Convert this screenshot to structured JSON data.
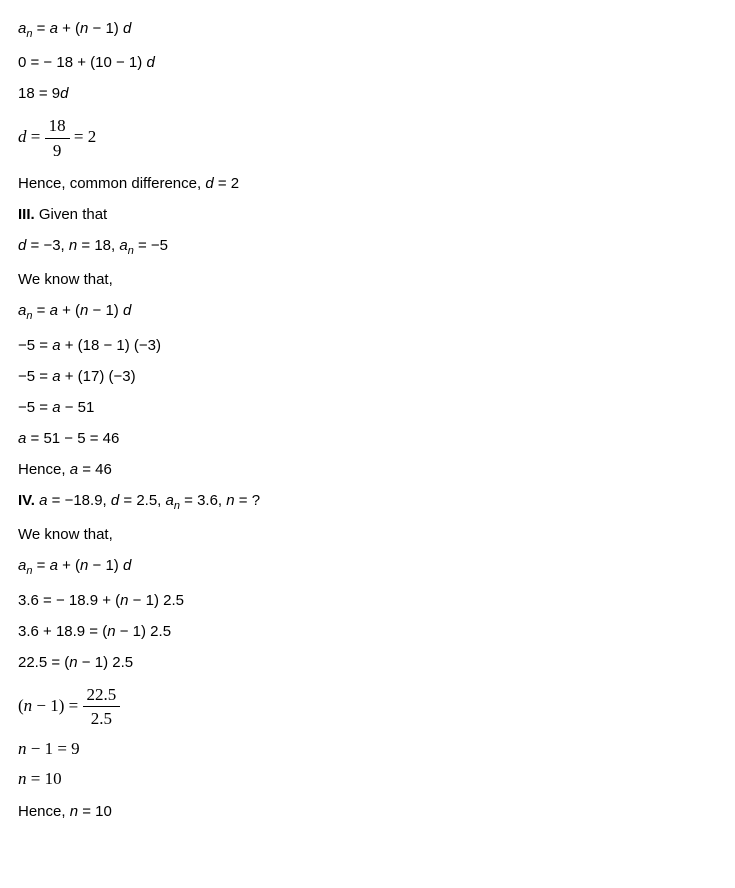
{
  "lines": {
    "l1": "aₙ = a + (n − 1) d",
    "l2": "0 = − 18 + (10 − 1) d",
    "l3": "18 = 9d",
    "l4_lhs": "d",
    "l4_num": "18",
    "l4_den": "9",
    "l4_rhs": "2",
    "l5_pre": "Hence, common difference, ",
    "l5_em": "d",
    "l5_post": " = 2",
    "l6_b": "III.",
    "l6_post": " Given that",
    "l7": "d = −3, n = 18, aₙ = −5",
    "l8": "We know that,",
    "l9": "aₙ = a + (n − 1) d",
    "l10": "−5 = a + (18 − 1) (−3)",
    "l11": "−5 = a + (17) (−3)",
    "l12": "−5 = a − 51",
    "l13": "a = 51 − 5 = 46",
    "l14_pre": "Hence, ",
    "l14_em": "a",
    "l14_post": " = 46",
    "l15_b": "IV.",
    "l15_post": " a = −18.9, d = 2.5, aₙ = 3.6, n = ?",
    "l16": "We know that,",
    "l17": "aₙ = a + (n − 1) d",
    "l18": "3.6 = − 18.9 + (n − 1) 2.5",
    "l19": "3.6 + 18.9 = (n − 1) 2.5",
    "l20": "22.5 = (n − 1) 2.5",
    "l21_lhs": "(n − 1)",
    "l21_num": "22.5",
    "l21_den": "2.5",
    "l22": "n − 1 = 9",
    "l23": "n = 10",
    "l24_pre": "Hence, ",
    "l24_em": "n",
    "l24_post": " = 10"
  },
  "style": {
    "font_family": "Verdana",
    "font_size_pt": 11,
    "math_font_family": "Times New Roman",
    "text_color": "#000000",
    "background_color": "#ffffff"
  }
}
